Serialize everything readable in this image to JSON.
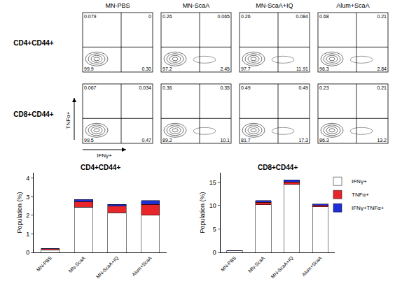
{
  "flow_panels": {
    "y_label": "TNFα+",
    "x_label": "IFNγ+",
    "columns": [
      "MN-PBS",
      "MN-ScaA",
      "MN-ScaA+IQ",
      "Alum+ScaA"
    ],
    "rows": [
      {
        "label": "CD4+CD44+",
        "panels": [
          {
            "ul": "0.079",
            "ur": "0",
            "ll": "99.9",
            "lr": "0.30"
          },
          {
            "ul": "0.26",
            "ur": "0.065",
            "ll": "97.2",
            "lr": "2.45"
          },
          {
            "ul": "0.26",
            "ur": "0.084",
            "ll": "97.7",
            "lr": "11.91"
          },
          {
            "ul": "0.68",
            "ur": "0.21",
            "ll": "96.3",
            "lr": "2.84"
          }
        ]
      },
      {
        "label": "CD8+CD44+",
        "panels": [
          {
            "ul": "0.067",
            "ur": "0.034",
            "ll": "99.5",
            "lr": "0.47"
          },
          {
            "ul": "0.36",
            "ur": "0.35",
            "ll": "89.2",
            "lr": "10.1"
          },
          {
            "ul": "0.49",
            "ur": "0.49",
            "ll": "81.7",
            "lr": "17.3"
          },
          {
            "ul": "0.23",
            "ur": "0.21",
            "ll": "86.3",
            "lr": "13.2"
          }
        ]
      }
    ]
  },
  "chart_data": [
    {
      "type": "bar",
      "title": "CD4+CD44+",
      "stacked": true,
      "y_label": "Population (%)",
      "categories": [
        "MN-PBS",
        "MN-ScaA",
        "MN-ScaA+IQ",
        "Alum+ScaA"
      ],
      "series": [
        {
          "name": "IFNγ+",
          "color": "#ffffff",
          "values": [
            0.15,
            2.45,
            2.15,
            2.0
          ]
        },
        {
          "name": "TNFα+",
          "color": "#e8262a",
          "values": [
            0.05,
            0.3,
            0.35,
            0.6
          ]
        },
        {
          "name": "IFNγ+TNFα+",
          "color": "#1f2fd6",
          "values": [
            0.02,
            0.1,
            0.1,
            0.2
          ]
        }
      ],
      "ylim": [
        0,
        4.3
      ],
      "yticks": [
        0,
        1,
        2,
        3,
        4
      ]
    },
    {
      "type": "bar",
      "title": "CD8+CD44+",
      "stacked": true,
      "y_label": "Population (%)",
      "legend": "right",
      "categories": [
        "MN-PBS",
        "MN-ScaA",
        "MN-ScaA+IQ",
        "Alum+ScaA"
      ],
      "series": [
        {
          "name": "IFNγ+",
          "color": "#ffffff",
          "values": [
            0.3,
            10.2,
            14.5,
            9.7
          ]
        },
        {
          "name": "TNFα+",
          "color": "#e8262a",
          "values": [
            0.05,
            0.5,
            0.5,
            0.3
          ]
        },
        {
          "name": "IFNγ+TNFα+",
          "color": "#1f2fd6",
          "values": [
            0.05,
            0.4,
            0.5,
            0.3
          ]
        }
      ],
      "ylim": [
        0,
        17
      ],
      "yticks": [
        0,
        5,
        10,
        15
      ]
    }
  ]
}
